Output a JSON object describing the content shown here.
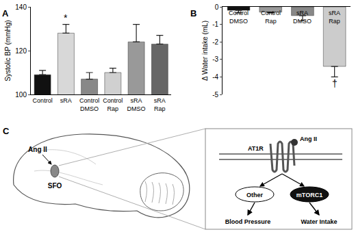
{
  "chart_data": [
    {
      "type": "bar",
      "panel": "A",
      "y_label": "Systolic BP (mmHg)",
      "categories": [
        "Control",
        "sRA",
        "Control DMSO",
        "Control Rap",
        "sRA DMSO",
        "sRA Rap"
      ],
      "values": [
        109,
        128,
        107,
        110,
        124,
        123
      ],
      "errors": [
        2,
        4,
        3,
        2,
        8,
        4
      ],
      "colors": [
        "#111111",
        "#d8d8d8",
        "#888888",
        "#d0d0d0",
        "#999999",
        "#666666"
      ],
      "ylim": [
        100,
        140
      ],
      "yticks": [
        100,
        120,
        140
      ],
      "annotations": [
        {
          "text": "*",
          "category": "sRA"
        }
      ]
    },
    {
      "type": "bar",
      "panel": "B",
      "y_label": "Δ Water intake (mL)",
      "categories": [
        "Control DMSO",
        "Control Rap",
        "sRA DMSO",
        "sRA Rap"
      ],
      "values": [
        -0.2,
        -0.3,
        -0.5,
        -3.4
      ],
      "errors": [
        0.15,
        0.05,
        0.3,
        0.6
      ],
      "colors": [
        "#111111",
        "#999999",
        "#888888",
        "#cccccc"
      ],
      "ylim": [
        -5,
        0
      ],
      "yticks": [
        -5,
        -4,
        -3,
        -2,
        -1,
        0
      ],
      "annotations": [
        {
          "text": "†",
          "category": "sRA Rap"
        }
      ]
    }
  ],
  "diagram": {
    "panel": "C",
    "input": "Ang II",
    "region": "SFO",
    "receptor": "AT1R",
    "ligand": "Ang II",
    "pathways": [
      {
        "label": "Other",
        "output": "Blood Pressure"
      },
      {
        "label": "mTORC1",
        "output": "Water Intake"
      }
    ]
  }
}
